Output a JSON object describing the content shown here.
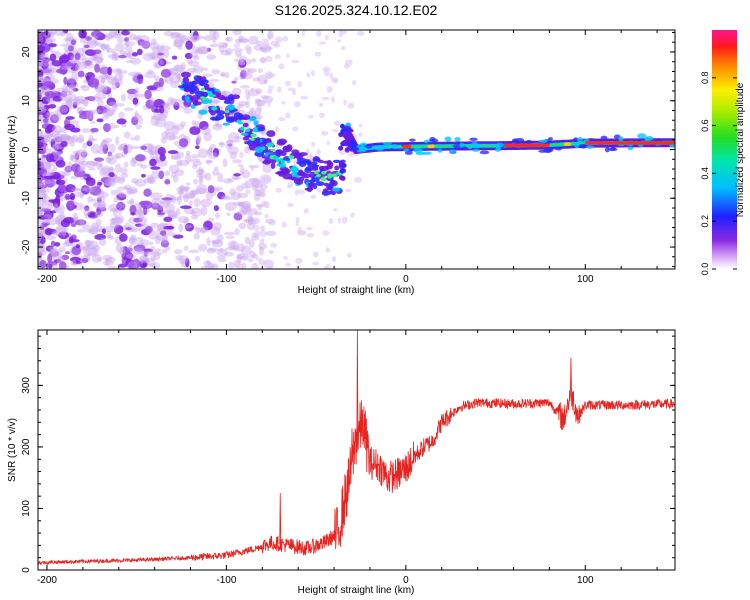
{
  "title": "S126.2025.324.10.12.E02",
  "colors": {
    "snr_line": "#e8221f",
    "axis": "#000000",
    "background": "#ffffff"
  },
  "chart_data": [
    {
      "type": "heatmap",
      "name": "spectrogram",
      "xlabel": "Height of straight line (km)",
      "ylabel": "Frequency (Hz)",
      "xlim": [
        -205,
        150
      ],
      "ylim": [
        -24.5,
        24.5
      ],
      "xticks": [
        -200,
        -100,
        0,
        100
      ],
      "xtick_labels": [
        "-200",
        "-100",
        "0",
        "100"
      ],
      "yticks": [
        -20,
        -10,
        0,
        10,
        20
      ],
      "ytick_labels": [
        "-20",
        "-10",
        "0",
        "10",
        "20"
      ],
      "ridge_points": [
        {
          "x": -125,
          "y": 13.5
        },
        {
          "x": -110,
          "y": 10.5
        },
        {
          "x": -95,
          "y": 7.5
        },
        {
          "x": -85,
          "y": 3
        },
        {
          "x": -72,
          "y": -1
        },
        {
          "x": -60,
          "y": -4
        },
        {
          "x": -45,
          "y": -6
        },
        {
          "x": -36,
          "y": -5
        },
        {
          "x": -33,
          "y": 3.5
        },
        {
          "x": -28,
          "y": 0
        },
        {
          "x": -15,
          "y": 0.5
        },
        {
          "x": 0,
          "y": 0.6
        },
        {
          "x": 25,
          "y": 0.7
        },
        {
          "x": 55,
          "y": 0.8
        },
        {
          "x": 80,
          "y": 0.9
        },
        {
          "x": 100,
          "y": 1.3
        },
        {
          "x": 150,
          "y": 1.4
        }
      ],
      "colorbar": {
        "label": "Normalized spectral amplitude",
        "range": [
          0,
          1
        ],
        "ticks": [
          0,
          0.2,
          0.4,
          0.6,
          0.8
        ],
        "tick_labels": [
          "0.0",
          "0.2",
          "0.4",
          "0.6",
          "0.8"
        ]
      }
    },
    {
      "type": "line",
      "name": "snr",
      "xlabel": "Height of straight line (km)",
      "ylabel": "SNR (10 * v/v)",
      "xlim": [
        -205,
        150
      ],
      "ylim": [
        0,
        390
      ],
      "xticks": [
        -200,
        -100,
        0,
        100
      ],
      "xtick_labels": [
        "-200",
        "-100",
        "0",
        "100"
      ],
      "yticks": [
        0,
        100,
        200,
        300
      ],
      "ytick_labels": [
        "0",
        "100",
        "200",
        "300"
      ],
      "series": [
        {
          "name": "SNR",
          "x": [
            -205,
            -180,
            -150,
            -120,
            -100,
            -85,
            -75,
            -65,
            -55,
            -45,
            -38,
            -32,
            -28,
            -24,
            -20,
            -15,
            -10,
            -5,
            0,
            5,
            10,
            15,
            20,
            30,
            40,
            60,
            80,
            88,
            92,
            96,
            100,
            120,
            150
          ],
          "y": [
            12,
            14,
            16,
            20,
            24,
            34,
            44,
            40,
            35,
            45,
            60,
            140,
            210,
            240,
            175,
            170,
            150,
            155,
            165,
            185,
            200,
            210,
            240,
            265,
            272,
            270,
            272,
            245,
            290,
            250,
            268,
            268,
            270
          ],
          "spikes": [
            {
              "x": -70,
              "y": 125
            },
            {
              "x": -27,
              "y": 390
            },
            {
              "x": -30,
              "y": 230
            },
            {
              "x": 92,
              "y": 345
            }
          ]
        }
      ]
    }
  ]
}
